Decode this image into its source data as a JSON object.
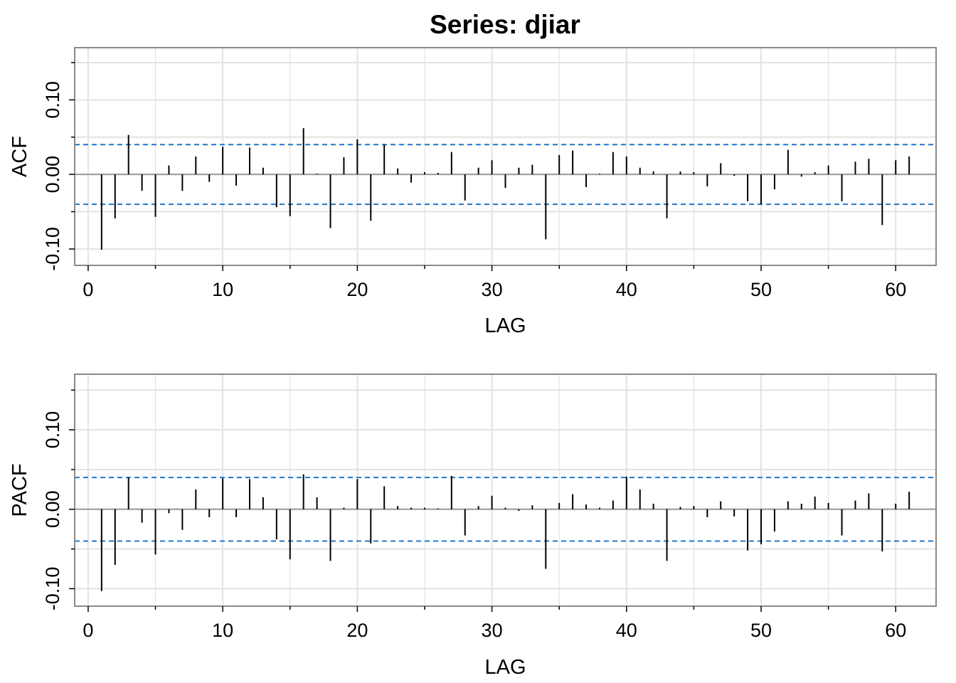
{
  "title": "Series:  djiar",
  "colors": {
    "bar": "#000000",
    "ci_line": "#1f78c8",
    "grid": "#e3e3e3",
    "zero_line": "#9a9a9a",
    "frame": "#8a8a8a"
  },
  "chart_data": [
    {
      "type": "bar",
      "name": "acf",
      "ylabel": "ACF",
      "xlabel": "LAG",
      "xlim": [
        -1,
        63
      ],
      "ylim": [
        -0.122,
        0.17
      ],
      "grid": true,
      "x_ticks": [
        0,
        10,
        20,
        30,
        40,
        50,
        60
      ],
      "y_ticks": [
        -0.1,
        0.0,
        0.1
      ],
      "y_tick_labels": [
        "-0.10",
        "0.00",
        "0.10"
      ],
      "ci": [
        0.04,
        -0.04
      ],
      "lags": [
        1,
        2,
        3,
        4,
        5,
        6,
        7,
        8,
        9,
        10,
        11,
        12,
        13,
        14,
        15,
        16,
        17,
        18,
        19,
        20,
        21,
        22,
        23,
        24,
        25,
        26,
        27,
        28,
        29,
        30,
        31,
        32,
        33,
        34,
        35,
        36,
        37,
        38,
        39,
        40,
        41,
        42,
        43,
        44,
        45,
        46,
        47,
        48,
        49,
        50,
        51,
        52,
        53,
        54,
        55,
        56,
        57,
        58,
        59,
        60,
        61
      ],
      "values": [
        -0.101,
        -0.059,
        0.053,
        -0.022,
        -0.057,
        0.012,
        -0.022,
        0.024,
        -0.01,
        0.037,
        -0.015,
        0.036,
        0.009,
        -0.044,
        -0.056,
        0.062,
        0.001,
        -0.072,
        0.023,
        0.047,
        -0.062,
        0.04,
        0.008,
        -0.011,
        0.003,
        0.002,
        0.03,
        -0.035,
        0.009,
        0.019,
        -0.018,
        0.009,
        0.013,
        -0.087,
        0.026,
        0.032,
        -0.017,
        0.001,
        0.03,
        0.024,
        0.009,
        0.004,
        -0.059,
        0.004,
        0.003,
        -0.016,
        0.015,
        -0.002,
        -0.036,
        -0.04,
        -0.02,
        0.033,
        -0.003,
        0.003,
        0.012,
        -0.036,
        0.017,
        0.021,
        -0.068,
        0.019,
        0.024
      ]
    },
    {
      "type": "bar",
      "name": "pacf",
      "ylabel": "PACF",
      "xlabel": "LAG",
      "xlim": [
        -1,
        63
      ],
      "ylim": [
        -0.122,
        0.17
      ],
      "grid": true,
      "x_ticks": [
        0,
        10,
        20,
        30,
        40,
        50,
        60
      ],
      "y_ticks": [
        -0.1,
        0.0,
        0.1
      ],
      "y_tick_labels": [
        "-0.10",
        "0.00",
        "0.10"
      ],
      "ci": [
        0.04,
        -0.04
      ],
      "lags": [
        1,
        2,
        3,
        4,
        5,
        6,
        7,
        8,
        9,
        10,
        11,
        12,
        13,
        14,
        15,
        16,
        17,
        18,
        19,
        20,
        21,
        22,
        23,
        24,
        25,
        26,
        27,
        28,
        29,
        30,
        31,
        32,
        33,
        34,
        35,
        36,
        37,
        38,
        39,
        40,
        41,
        42,
        43,
        44,
        45,
        46,
        47,
        48,
        49,
        50,
        51,
        52,
        53,
        54,
        55,
        56,
        57,
        58,
        59,
        60,
        61
      ],
      "values": [
        -0.103,
        -0.07,
        0.04,
        -0.017,
        -0.057,
        -0.005,
        -0.026,
        0.025,
        -0.01,
        0.039,
        -0.01,
        0.038,
        0.015,
        -0.038,
        -0.063,
        0.044,
        0.015,
        -0.065,
        0.002,
        0.038,
        -0.043,
        0.029,
        0.004,
        0.002,
        0.002,
        0.001,
        0.042,
        -0.033,
        0.004,
        0.017,
        0.002,
        -0.002,
        0.005,
        -0.075,
        0.008,
        0.019,
        0.006,
        0.002,
        0.011,
        0.041,
        0.025,
        0.007,
        -0.065,
        0.003,
        0.004,
        -0.01,
        0.01,
        -0.009,
        -0.052,
        -0.044,
        -0.028,
        0.01,
        0.007,
        0.016,
        0.008,
        -0.033,
        0.011,
        0.02,
        -0.053,
        0.007,
        0.022
      ]
    }
  ]
}
